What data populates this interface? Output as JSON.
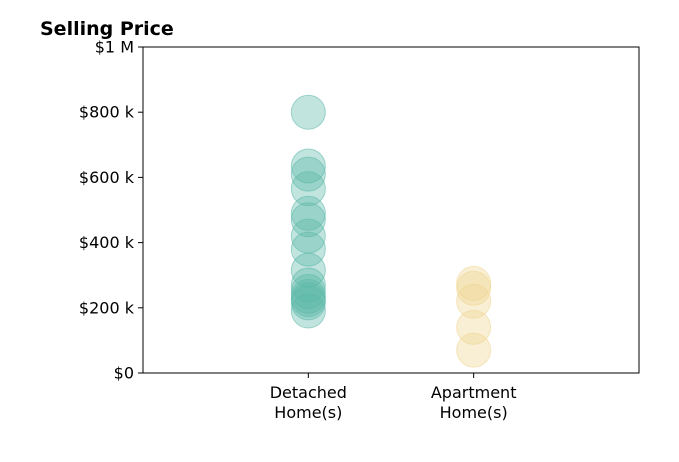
{
  "chart_data": {
    "type": "scatter",
    "title": "Selling Price",
    "xlabel": "",
    "ylabel": "",
    "ylim": [
      0,
      1000000
    ],
    "yticks": [
      {
        "value": 0,
        "label": "$0"
      },
      {
        "value": 200000,
        "label": "$200 k"
      },
      {
        "value": 400000,
        "label": "$400 k"
      },
      {
        "value": 600000,
        "label": "$600 k"
      },
      {
        "value": 800000,
        "label": "$800 k"
      },
      {
        "value": 1000000,
        "label": "$1 M"
      }
    ],
    "categories": [
      {
        "key": "detached",
        "label_lines": [
          "Detached",
          "Home(s)"
        ]
      },
      {
        "key": "apartment",
        "label_lines": [
          "Apartment",
          "Home(s)"
        ]
      }
    ],
    "xlim": [
      -1,
      2
    ],
    "grid": false,
    "series": [
      {
        "category_index": 0,
        "color": "#5bb8a8",
        "values": [
          800000,
          635000,
          610000,
          565000,
          490000,
          470000,
          420000,
          380000,
          315000,
          270000,
          250000,
          235000,
          225000,
          215000,
          190000
        ]
      },
      {
        "category_index": 1,
        "color": "#f0d590",
        "values": [
          275000,
          260000,
          220000,
          140000,
          70000
        ]
      }
    ]
  }
}
